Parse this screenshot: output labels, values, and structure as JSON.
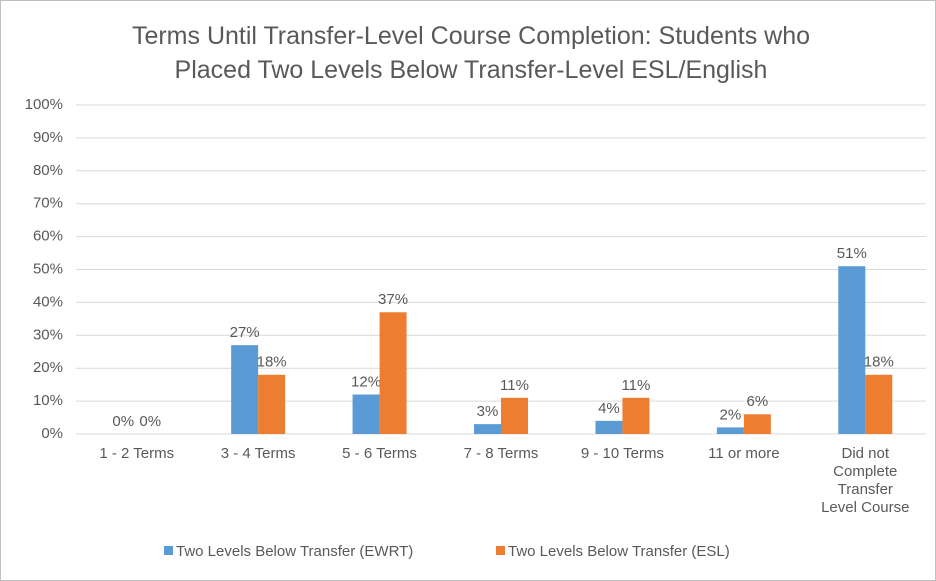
{
  "chart_data": {
    "type": "bar",
    "title": "Terms Until Transfer-Level Course Completion: Students who Placed Two Levels Below Transfer-Level ESL/English",
    "categories": [
      "1 - 2 Terms",
      "3 - 4 Terms",
      "5 - 6 Terms",
      "7 - 8 Terms",
      "9 - 10 Terms",
      "11  or more",
      "Did not Complete Transfer Level Course"
    ],
    "series": [
      {
        "name": "Two Levels Below Transfer (EWRT)",
        "color": "#5b9bd5",
        "values": [
          0,
          27,
          12,
          3,
          4,
          2,
          51
        ],
        "value_labels": [
          "0%",
          "27%",
          "12%",
          "3%",
          "4%",
          "2%",
          "51%"
        ]
      },
      {
        "name": "Two Levels Below Transfer (ESL)",
        "color": "#ed7d31",
        "values": [
          0,
          18,
          37,
          11,
          11,
          6,
          18
        ],
        "value_labels": [
          "0%",
          "18%",
          "37%",
          "11%",
          "11%",
          "6%",
          "18%"
        ]
      }
    ],
    "ylim": [
      0,
      100
    ],
    "yticks": [
      {
        "value": 0,
        "label": "0%"
      },
      {
        "value": 10,
        "label": "10%"
      },
      {
        "value": 20,
        "label": "20%"
      },
      {
        "value": 30,
        "label": "30%"
      },
      {
        "value": 40,
        "label": "40%"
      },
      {
        "value": 50,
        "label": "50%"
      },
      {
        "value": 60,
        "label": "60%"
      },
      {
        "value": 70,
        "label": "70%"
      },
      {
        "value": 80,
        "label": "80%"
      },
      {
        "value": 90,
        "label": "90%"
      },
      {
        "value": 100,
        "label": "100%"
      }
    ],
    "grid": true,
    "legend": "bottom"
  }
}
